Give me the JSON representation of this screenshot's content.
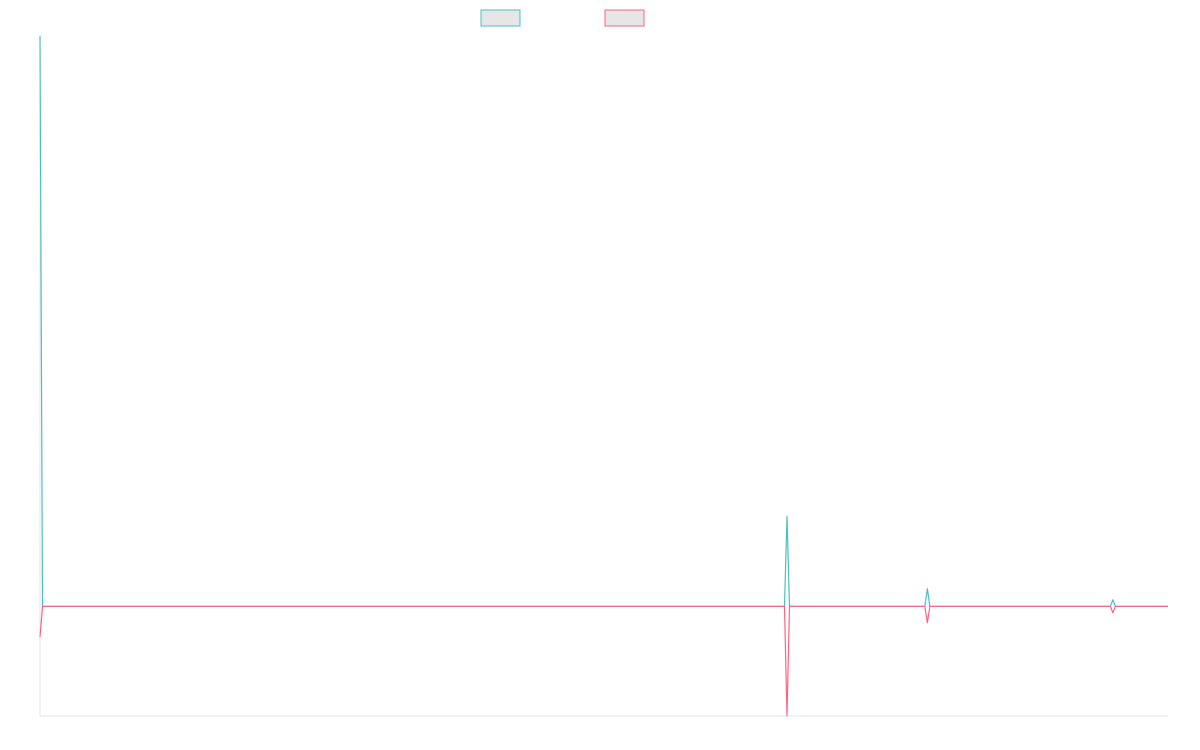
{
  "chart_data": {
    "type": "line",
    "title": "",
    "xlabel": "",
    "ylabel": "",
    "legend": "top-center",
    "grid": false,
    "x": [
      0,
      1,
      297,
      298,
      299,
      353,
      354,
      355,
      427,
      428,
      429,
      450
    ],
    "xlim": [
      0,
      450
    ],
    "ylim": [
      -1.0,
      5.2
    ],
    "series": [
      {
        "name": "",
        "color": "#4bc0c0",
        "fill": "#e6e6e6",
        "values": [
          5.2,
          0,
          0,
          0.82,
          0,
          0,
          0.16,
          0,
          0,
          0.06,
          0,
          0
        ]
      },
      {
        "name": "",
        "color": "#ff6384",
        "fill": "#e6e6e6",
        "values": [
          -0.28,
          0,
          0,
          -1.0,
          0,
          0,
          -0.15,
          0,
          0,
          -0.06,
          0,
          0
        ]
      }
    ]
  }
}
